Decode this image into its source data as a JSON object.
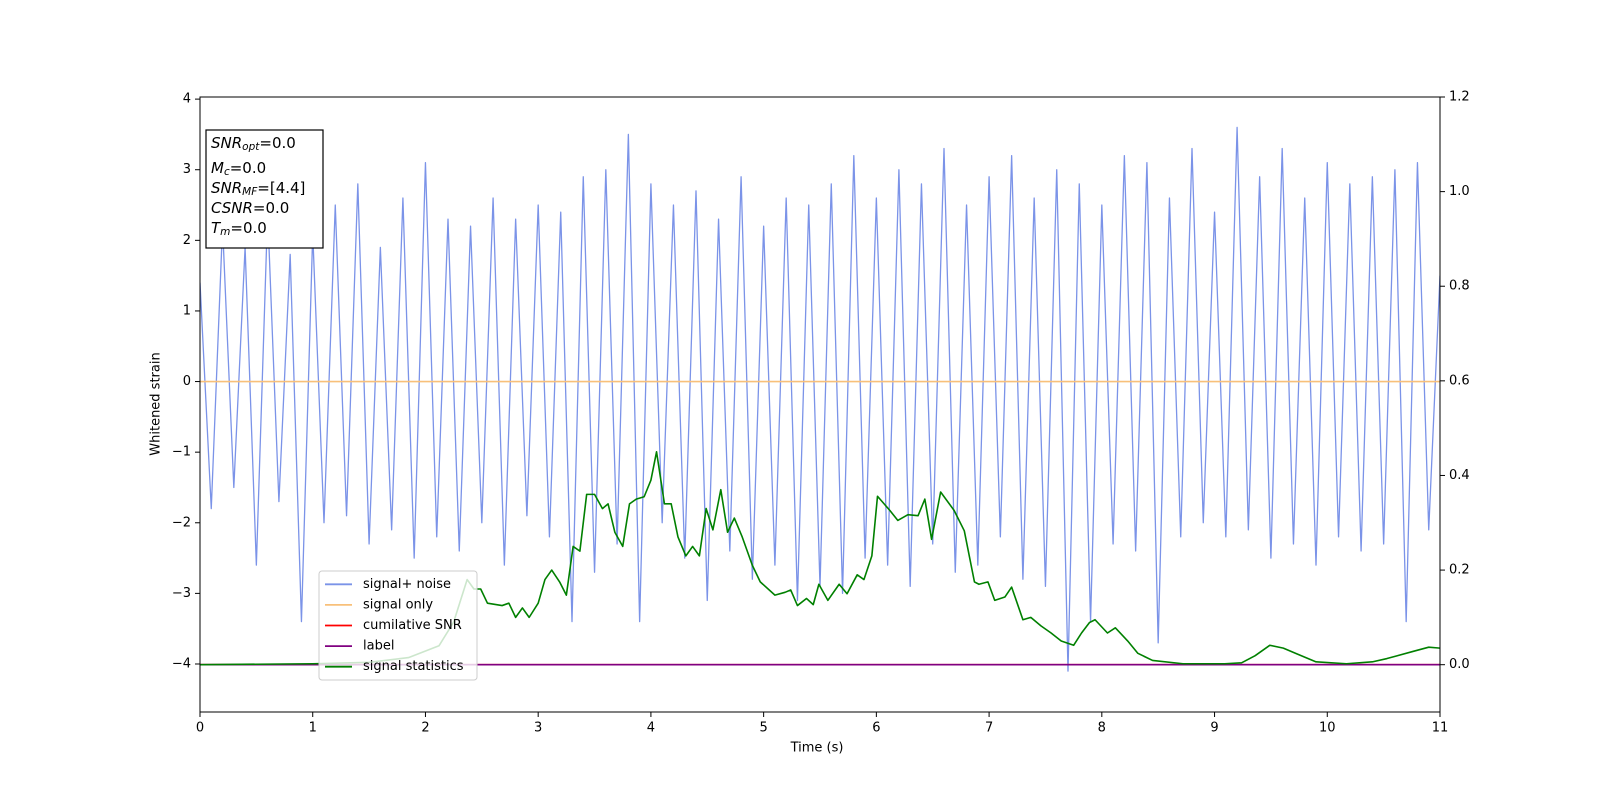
{
  "chart_data": {
    "type": "line",
    "xlabel": "Time (s)",
    "ylabel": "Whitened strain",
    "xlim": [
      0,
      11
    ],
    "xticks": [
      0,
      1,
      2,
      3,
      4,
      5,
      6,
      7,
      8,
      9,
      10,
      11
    ],
    "ylim": [
      -4.68,
      4.03
    ],
    "yticks": [
      {
        "value": -4,
        "label": "−4"
      },
      {
        "value": -3,
        "label": "−3"
      },
      {
        "value": -2,
        "label": "−2"
      },
      {
        "value": -1,
        "label": "−1"
      },
      0,
      1,
      2,
      3,
      4
    ],
    "y2lim": [
      -0.1,
      1.2
    ],
    "y2ticks": [
      {
        "value": 0,
        "label": "0.0"
      },
      0.2,
      0.4,
      0.6,
      0.8,
      {
        "value": 1,
        "label": "1.0"
      },
      1.2
    ],
    "legend_loc": "lower left",
    "annotation_lines": [
      {
        "text": "SNR",
        "sub": "opt",
        "rest": "=0.0"
      },
      {
        "text": "M",
        "sub": "c",
        "rest": "=0.0"
      },
      {
        "text": "SNR",
        "sub": "MF",
        "rest": "=[4.4]"
      },
      {
        "text": "CSNR",
        "rest": "=0.0"
      },
      {
        "text": "T",
        "sub": "m",
        "rest": "=0.0"
      }
    ],
    "series": [
      {
        "name": "signal+ noise",
        "color": "#7b93e8",
        "x": [
          0,
          0.1,
          0.2,
          0.3,
          0.4,
          0.5,
          0.6,
          0.7,
          0.8,
          0.9,
          1,
          1.1,
          1.2,
          1.3,
          1.4,
          1.5,
          1.6,
          1.7,
          1.8,
          1.9,
          2,
          2.1,
          2.2,
          2.3,
          2.4,
          2.5,
          2.6,
          2.7,
          2.8,
          2.9,
          3,
          3.1,
          3.2,
          3.3,
          3.4,
          3.5,
          3.6,
          3.7,
          3.8,
          3.9,
          4,
          4.1,
          4.2,
          4.3,
          4.4,
          4.5,
          4.6,
          4.7,
          4.8,
          4.9,
          5,
          5.1,
          5.2,
          5.3,
          5.4,
          5.5,
          5.6,
          5.7,
          5.8,
          5.9,
          6,
          6.1,
          6.2,
          6.3,
          6.4,
          6.5,
          6.6,
          6.7,
          6.8,
          6.9,
          7,
          7.1,
          7.2,
          7.3,
          7.4,
          7.5,
          7.6,
          7.7,
          7.8,
          7.9,
          8,
          8.1,
          8.2,
          8.3,
          8.4,
          8.5,
          8.6,
          8.7,
          8.8,
          8.9,
          9,
          9.1,
          9.2,
          9.3,
          9.4,
          9.5,
          9.6,
          9.7,
          9.8,
          9.9,
          10,
          10.1,
          10.2,
          10.3,
          10.4,
          10.5,
          10.6,
          10.7,
          10.8,
          10.9,
          11
        ],
        "values": [
          1.4,
          -1.8,
          2.2,
          -1.5,
          1.9,
          -2.6,
          2.4,
          -1.7,
          1.8,
          -3.4,
          2.1,
          -2.0,
          2.5,
          -1.9,
          2.8,
          -2.3,
          1.9,
          -2.1,
          2.6,
          -2.5,
          3.1,
          -2.2,
          2.3,
          -2.4,
          2.2,
          -2.0,
          2.6,
          -2.6,
          2.3,
          -1.9,
          2.5,
          -2.2,
          2.4,
          -3.4,
          2.9,
          -2.7,
          3.0,
          -2.3,
          3.5,
          -3.4,
          2.8,
          -2.0,
          2.5,
          -2.5,
          2.7,
          -3.1,
          2.3,
          -2.4,
          2.9,
          -2.8,
          2.2,
          -2.6,
          2.6,
          -3.1,
          2.5,
          -2.9,
          2.8,
          -3.0,
          3.2,
          -2.5,
          2.6,
          -2.6,
          3.0,
          -2.9,
          2.8,
          -2.3,
          3.3,
          -2.7,
          2.5,
          -2.6,
          2.9,
          -2.2,
          3.2,
          -2.8,
          2.6,
          -2.9,
          3.0,
          -4.1,
          2.8,
          -3.4,
          2.5,
          -2.3,
          3.2,
          -2.4,
          3.1,
          -3.7,
          2.6,
          -2.2,
          3.3,
          -2.0,
          2.4,
          -2.2,
          3.6,
          -2.1,
          2.9,
          -2.5,
          3.3,
          -2.3,
          2.6,
          -2.6,
          3.1,
          -2.2,
          2.8,
          -2.4,
          2.9,
          -2.3,
          3.0,
          -3.4,
          3.1,
          -2.1,
          1.5
        ]
      },
      {
        "name": "signal only",
        "color": "#f8c07a",
        "x": [
          0,
          11
        ],
        "values": [
          0,
          0
        ]
      },
      {
        "name": "cumilative SNR",
        "color": "#ff0000",
        "axis": "y2",
        "x": [
          0,
          11
        ],
        "values": [
          0,
          0
        ]
      },
      {
        "name": "label",
        "color": "#800080",
        "axis": "y2",
        "x": [
          0,
          11
        ],
        "values": [
          0,
          0
        ]
      },
      {
        "name": "signal statistics",
        "color": "#008000",
        "axis": "y2",
        "x": [
          0,
          1,
          1.5,
          1.85,
          2.12,
          2.25,
          2.37,
          2.43,
          2.49,
          2.55,
          2.68,
          2.74,
          2.8,
          2.86,
          2.92,
          3,
          3.06,
          3.12,
          3.19,
          3.25,
          3.31,
          3.37,
          3.43,
          3.5,
          3.57,
          3.62,
          3.68,
          3.75,
          3.81,
          3.87,
          3.94,
          4,
          4.05,
          4.12,
          4.18,
          4.24,
          4.31,
          4.37,
          4.43,
          4.49,
          4.55,
          4.62,
          4.68,
          4.74,
          4.81,
          4.9,
          4.97,
          5.1,
          5.19,
          5.24,
          5.3,
          5.38,
          5.44,
          5.49,
          5.57,
          5.67,
          5.74,
          5.83,
          5.89,
          5.96,
          6.01,
          6.12,
          6.19,
          6.28,
          6.37,
          6.43,
          6.49,
          6.57,
          6.69,
          6.78,
          6.87,
          6.91,
          6.99,
          7.05,
          7.14,
          7.2,
          7.3,
          7.37,
          7.46,
          7.55,
          7.64,
          7.75,
          7.82,
          7.89,
          7.94,
          8.05,
          8.12,
          8.23,
          8.32,
          8.45,
          8.72,
          9.09,
          9.24,
          9.36,
          9.49,
          9.61,
          9.72,
          9.9,
          10.17,
          10.4,
          10.53,
          10.76,
          10.9,
          11
        ],
        "values": [
          0,
          0.002,
          0.005,
          0.015,
          0.04,
          0.09,
          0.18,
          0.16,
          0.16,
          0.13,
          0.125,
          0.13,
          0.1,
          0.12,
          0.1,
          0.13,
          0.18,
          0.2,
          0.175,
          0.147,
          0.25,
          0.24,
          0.36,
          0.36,
          0.33,
          0.34,
          0.28,
          0.25,
          0.34,
          0.35,
          0.355,
          0.39,
          0.45,
          0.34,
          0.34,
          0.27,
          0.23,
          0.25,
          0.23,
          0.33,
          0.285,
          0.37,
          0.28,
          0.31,
          0.27,
          0.21,
          0.175,
          0.147,
          0.153,
          0.158,
          0.125,
          0.14,
          0.127,
          0.17,
          0.136,
          0.17,
          0.15,
          0.19,
          0.18,
          0.23,
          0.356,
          0.326,
          0.305,
          0.317,
          0.315,
          0.35,
          0.265,
          0.365,
          0.326,
          0.283,
          0.175,
          0.17,
          0.175,
          0.136,
          0.143,
          0.164,
          0.095,
          0.1,
          0.082,
          0.067,
          0.05,
          0.041,
          0.067,
          0.089,
          0.095,
          0.067,
          0.078,
          0.05,
          0.024,
          0.009,
          0.002,
          0.002,
          0.004,
          0.019,
          0.041,
          0.035,
          0.024,
          0.006,
          0.002,
          0.006,
          0.013,
          0.028,
          0.037,
          0.035
        ]
      }
    ]
  }
}
